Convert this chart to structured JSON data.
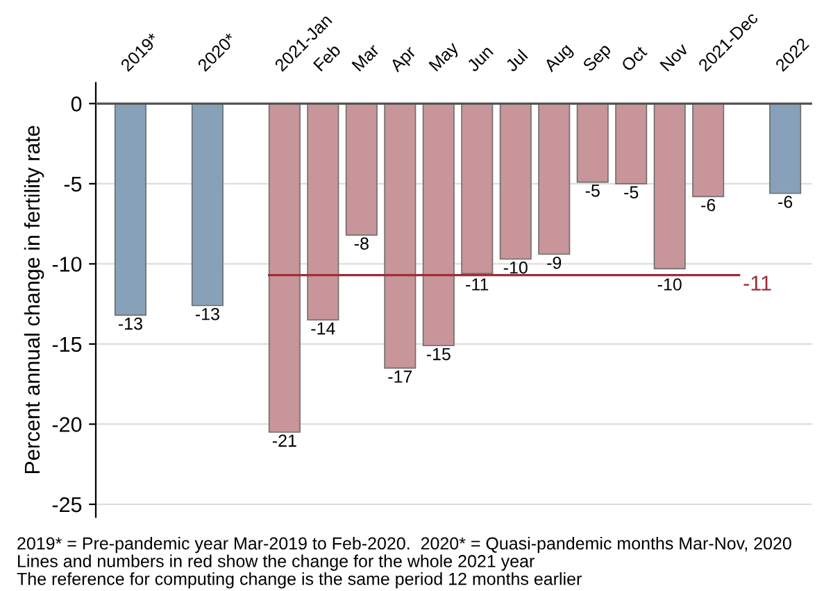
{
  "chart_data": {
    "type": "bar",
    "categories": [
      "2019*",
      null,
      "2020*",
      null,
      "2021-Jan",
      "Feb",
      "Mar",
      "Apr",
      "May",
      "Jun",
      "Jul",
      "Aug",
      "Sep",
      "Oct",
      "Nov",
      "2021-Dec",
      null,
      "2022"
    ],
    "values": [
      -13.2,
      null,
      -12.6,
      null,
      -20.5,
      -13.5,
      -8.2,
      -16.5,
      -15.1,
      -10.6,
      -9.7,
      -9.4,
      -4.9,
      -5.0,
      -10.3,
      -5.8,
      null,
      -5.6
    ],
    "colors": [
      "#87a2b8",
      null,
      "#87a2b8",
      null,
      "#c8959a",
      "#c8959a",
      "#c8959a",
      "#c8959a",
      "#c8959a",
      "#c8959a",
      "#c8959a",
      "#c8959a",
      "#c8959a",
      "#c8959a",
      "#c8959a",
      "#c8959a",
      null,
      "#87a2b8"
    ],
    "value_labels": [
      "-13",
      null,
      "-13",
      null,
      "-21",
      "-14",
      "-8",
      "-17",
      "-15",
      "-11",
      "-10",
      "-9",
      "-5",
      "-5",
      "-10",
      "-6",
      null,
      "-6"
    ],
    "ylabel": "Percent annual change in fertility rate",
    "ylim": [
      -25.8,
      1.3
    ],
    "yticks": [
      0,
      -5,
      -10,
      -15,
      -20,
      -25
    ],
    "grid": "y",
    "ref_lines": [
      {
        "axis": "y",
        "value": -10.7,
        "label": "-11",
        "color": "#9b2f3a"
      }
    ],
    "annotations": [
      "2019* = Pre-pandemic year Mar-2019 to Feb-2020.  2020* = Quasi-pandemic months Mar-Nov, 2020",
      "Lines and numbers in red show the change for the whole 2021 year",
      "The reference for computing change is the same period 12 months earlier"
    ]
  }
}
